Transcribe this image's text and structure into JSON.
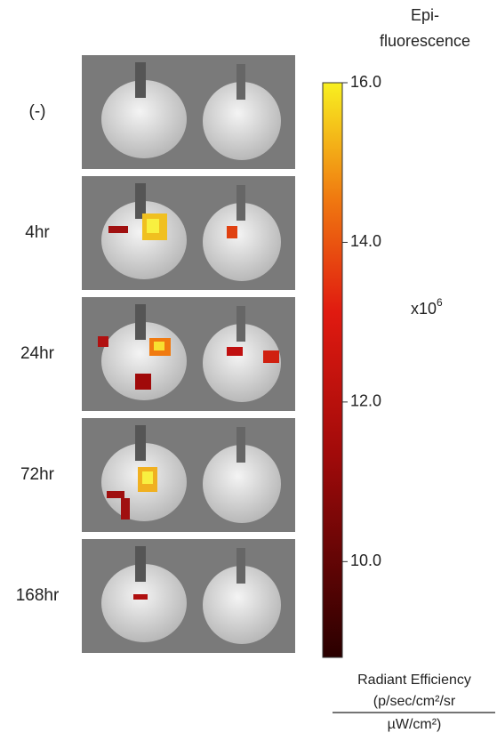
{
  "colorbar": {
    "title_lines": [
      "Epi-",
      "fluorescence"
    ],
    "range": [
      8.8,
      16.0
    ],
    "ticks": [
      {
        "value": 16,
        "label": "16.0"
      },
      {
        "value": 14,
        "label": "14.0"
      },
      {
        "value": 12,
        "label": "12.0"
      },
      {
        "value": 10,
        "label": "10.0"
      }
    ],
    "multiplier": {
      "base": "x10",
      "exponent": "6"
    },
    "unit": {
      "name": "Radiant Efficiency",
      "numerator": "(p/sec/cm²/sr",
      "denominator": "µW/cm²)"
    }
  },
  "panels": [
    {
      "label": "(-)"
    },
    {
      "label": "4hr"
    },
    {
      "label": "24hr"
    },
    {
      "label": "72hr"
    },
    {
      "label": "168hr"
    }
  ]
}
